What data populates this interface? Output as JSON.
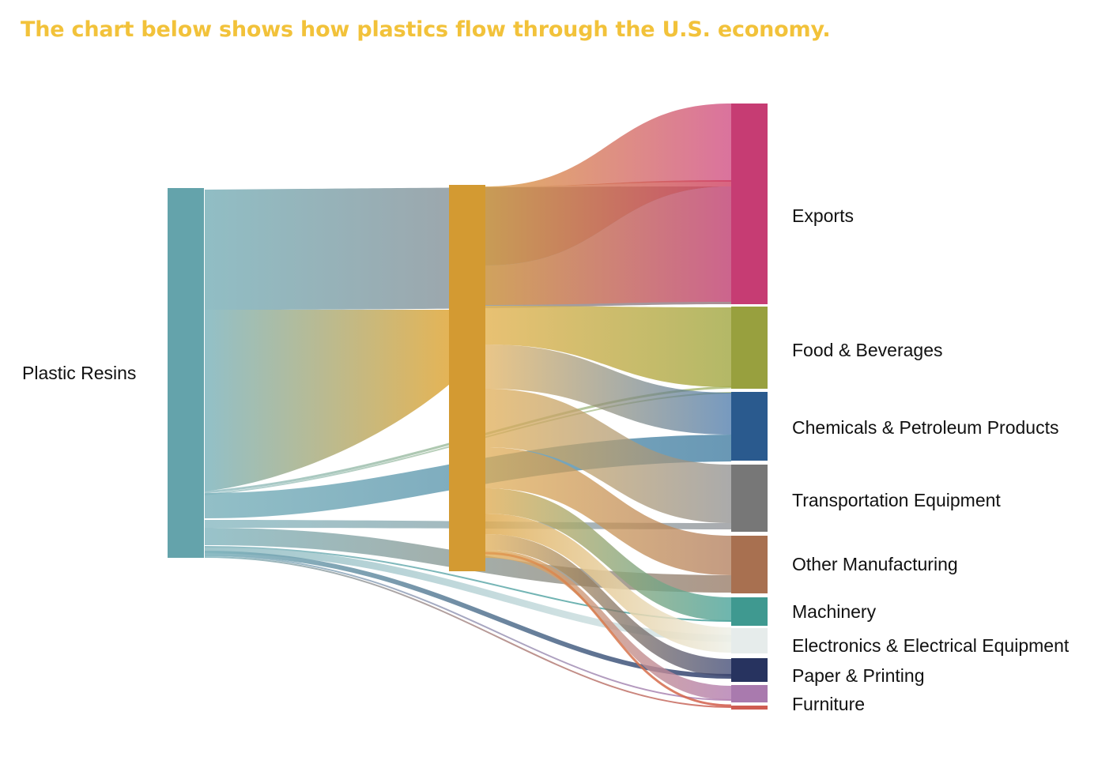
{
  "title": "The chart below shows how plastics flow through the U.S. economy.",
  "colors": {
    "title": "#f2c23a",
    "source": "#64a3ab",
    "middle": "#d39a32"
  },
  "chart_data": {
    "type": "sankey",
    "source": {
      "label": "Plastic Resins"
    },
    "middle": {
      "label": ""
    },
    "destinations": [
      {
        "label": "Exports",
        "color": "#c63c73"
      },
      {
        "label": "Food & Beverages",
        "color": "#98a03e"
      },
      {
        "label": "Chemicals & Petroleum Products",
        "color": "#2a5a8e"
      },
      {
        "label": "Transportation Equipment",
        "color": "#777777"
      },
      {
        "label": "Other Manufacturing",
        "color": "#a87050"
      },
      {
        "label": "Machinery",
        "color": "#3f9990"
      },
      {
        "label": "Electronics & Electrical Equipment",
        "color": "#e6eceb"
      },
      {
        "label": "Paper & Printing",
        "color": "#27335f"
      },
      {
        "label": "Furniture",
        "color": "#a97aae"
      },
      {
        "label": "",
        "color": "#cf5c52"
      }
    ]
  }
}
